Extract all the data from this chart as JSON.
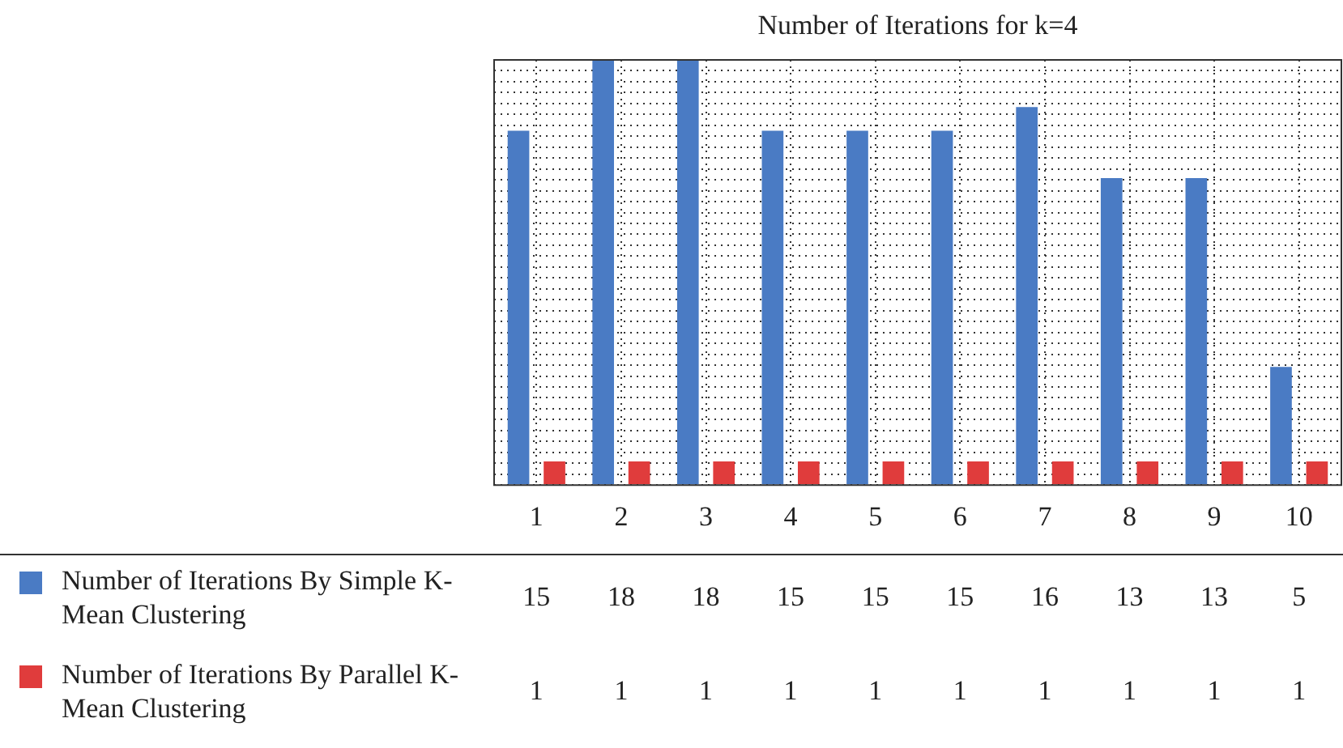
{
  "chart_data": {
    "type": "bar",
    "title": "Number of Iterations for k=4",
    "categories": [
      "1",
      "2",
      "3",
      "4",
      "5",
      "6",
      "7",
      "8",
      "9",
      "10"
    ],
    "series": [
      {
        "name": "Number of Iterations By Simple K-Mean Clustering",
        "color": "#4a7bc4",
        "values": [
          15,
          18,
          18,
          15,
          15,
          15,
          16,
          13,
          13,
          5
        ]
      },
      {
        "name": "Number of Iterations By Parallel K-Mean Clustering",
        "color": "#e03c3c",
        "values": [
          1,
          1,
          1,
          1,
          1,
          1,
          1,
          1,
          1,
          1
        ]
      }
    ],
    "data_labels": true,
    "grid": true,
    "legend": "bottom"
  }
}
